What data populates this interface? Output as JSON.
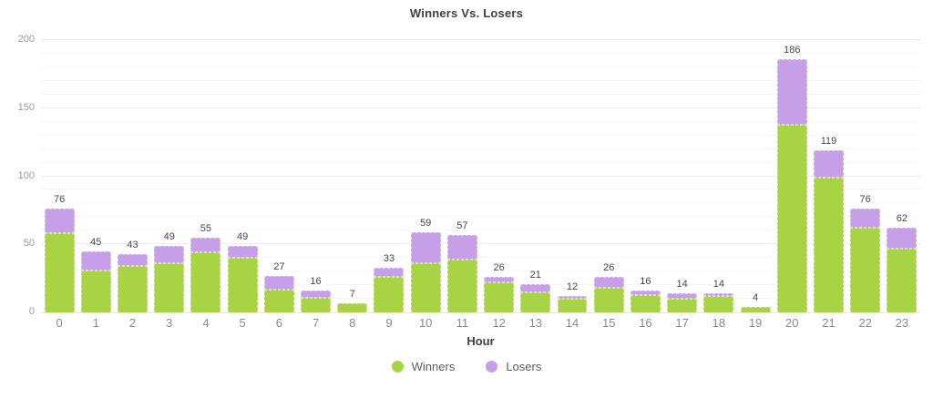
{
  "title": "Winners Vs. Losers",
  "chart_data": {
    "type": "bar",
    "stacked": true,
    "title": "Winners Vs. Losers",
    "xlabel": "Hour",
    "ylabel": "",
    "categories": [
      "0",
      "1",
      "2",
      "3",
      "4",
      "5",
      "6",
      "7",
      "8",
      "9",
      "10",
      "11",
      "12",
      "13",
      "14",
      "15",
      "16",
      "17",
      "18",
      "19",
      "20",
      "21",
      "22",
      "23"
    ],
    "series": [
      {
        "name": "Winners",
        "color": "#a8d344",
        "values": [
          58,
          31,
          34,
          36,
          44,
          40,
          17,
          11,
          7,
          26,
          36,
          39,
          22,
          15,
          10,
          18,
          13,
          10,
          12,
          4,
          138,
          99,
          62,
          47
        ]
      },
      {
        "name": "Losers",
        "color": "#c79ee8",
        "values": [
          18,
          14,
          9,
          13,
          11,
          9,
          10,
          5,
          0,
          7,
          23,
          18,
          4,
          6,
          2,
          8,
          3,
          4,
          2,
          0,
          48,
          20,
          14,
          15
        ]
      }
    ],
    "totals": [
      76,
      45,
      43,
      49,
      55,
      49,
      27,
      16,
      7,
      33,
      59,
      57,
      26,
      21,
      12,
      26,
      16,
      14,
      14,
      4,
      186,
      119,
      76,
      62
    ],
    "y_ticks": [
      0,
      50,
      100,
      150,
      200
    ],
    "ylim": [
      0,
      200
    ],
    "grid": {
      "major_every": 50,
      "minor_every": 10
    },
    "legend_position": "bottom"
  }
}
